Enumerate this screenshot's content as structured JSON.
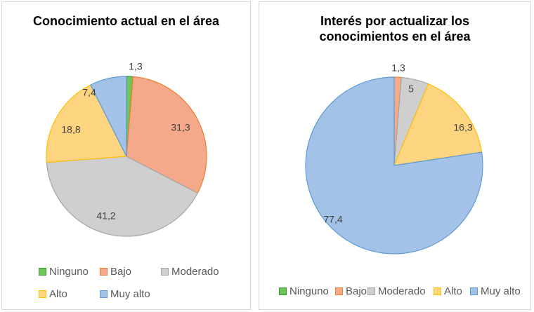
{
  "chart_data": [
    {
      "type": "pie",
      "title": "Conocimiento actual en el área",
      "categories": [
        "Ninguno",
        "Bajo",
        "Moderado",
        "Alto",
        "Muy alto"
      ],
      "values": [
        1.3,
        31.3,
        41.2,
        18.8,
        7.4
      ],
      "data_labels": [
        "1,3",
        "31,3",
        "41,2",
        "18,8",
        "7,4"
      ],
      "legend_position": "bottom"
    },
    {
      "type": "pie",
      "title": "Interés por actualizar los conocimientos en el área",
      "categories": [
        "Ninguno",
        "Bajo",
        "Moderado",
        "Alto",
        "Muy alto"
      ],
      "values": [
        0,
        1.3,
        5,
        16.3,
        77.4
      ],
      "data_labels": [
        "",
        "1,3",
        "5",
        "16,3",
        "77,4"
      ],
      "legend_position": "bottom"
    }
  ],
  "colors": {
    "Ninguno": {
      "fill": "#70c45a",
      "stroke": "#3a9a2e"
    },
    "Bajo": {
      "fill": "#f4aa8a",
      "stroke": "#ed7d31"
    },
    "Moderado": {
      "fill": "#cfcfcf",
      "stroke": "#a5a5a5"
    },
    "Alto": {
      "fill": "#fdd47f",
      "stroke": "#ffc000"
    },
    "Muy alto": {
      "fill": "#a4c2e8",
      "stroke": "#5b9bd5"
    }
  }
}
